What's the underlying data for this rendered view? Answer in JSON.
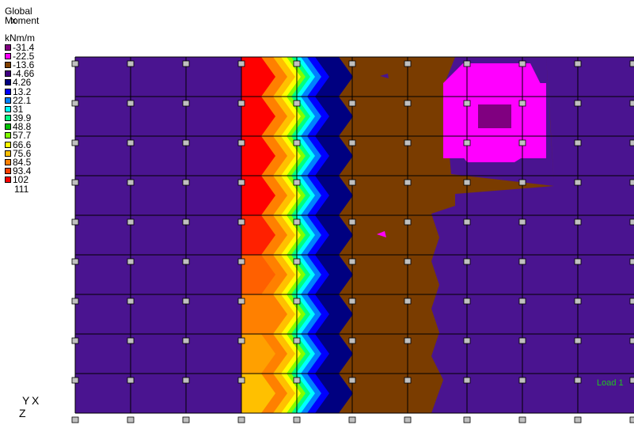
{
  "legend": {
    "title": "Global Moment",
    "x_mark": "X",
    "units": "kNm/m",
    "entries": [
      {
        "value": "-31.4",
        "color": "#800080"
      },
      {
        "value": "-22.5",
        "color": "#ff00ff"
      },
      {
        "value": "-13.6",
        "color": "#804000"
      },
      {
        "value": "-4.66",
        "color": "#400080"
      },
      {
        "value": "4.26",
        "color": "#000080"
      },
      {
        "value": "13.2",
        "color": "#0000ff"
      },
      {
        "value": "22.1",
        "color": "#0080ff"
      },
      {
        "value": "31",
        "color": "#00ffff"
      },
      {
        "value": "39.9",
        "color": "#00ff80"
      },
      {
        "value": "48.8",
        "color": "#00c000"
      },
      {
        "value": "57.7",
        "color": "#80ff00"
      },
      {
        "value": "66.6",
        "color": "#ffff00"
      },
      {
        "value": "75.6",
        "color": "#ffc000"
      },
      {
        "value": "84.5",
        "color": "#ff8000"
      },
      {
        "value": "93.4",
        "color": "#ff4000"
      },
      {
        "value": "102",
        "color": "#ff0000"
      }
    ],
    "max_value": "111"
  },
  "axis": {
    "y": "Y",
    "x": "X",
    "z": "Z"
  },
  "load_label": "Load 1",
  "colors": {
    "background": "#ffffff",
    "field": "#4a1490",
    "brown": "#7a3c00",
    "magenta": "#ff00ff",
    "purple": "#800080",
    "grid": "#000000"
  }
}
